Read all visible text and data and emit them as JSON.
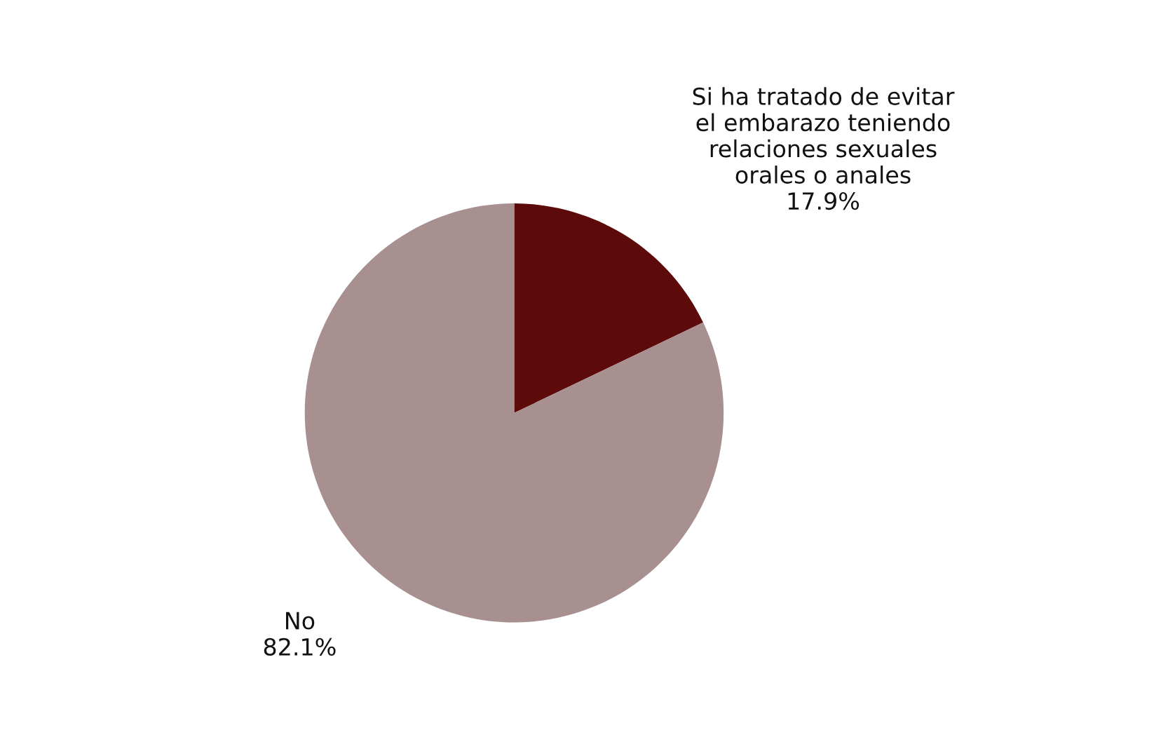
{
  "chart_data": {
    "type": "pie",
    "categories": [
      "Si ha tratado de evitar\nel embarazo teniendo\nrelaciones sexuales\norales o anales",
      "No"
    ],
    "values": [
      17.9,
      82.1
    ],
    "value_labels": [
      "17.9%",
      "82.1%"
    ],
    "colors": [
      "#5c0a0a",
      "#a89090"
    ]
  }
}
